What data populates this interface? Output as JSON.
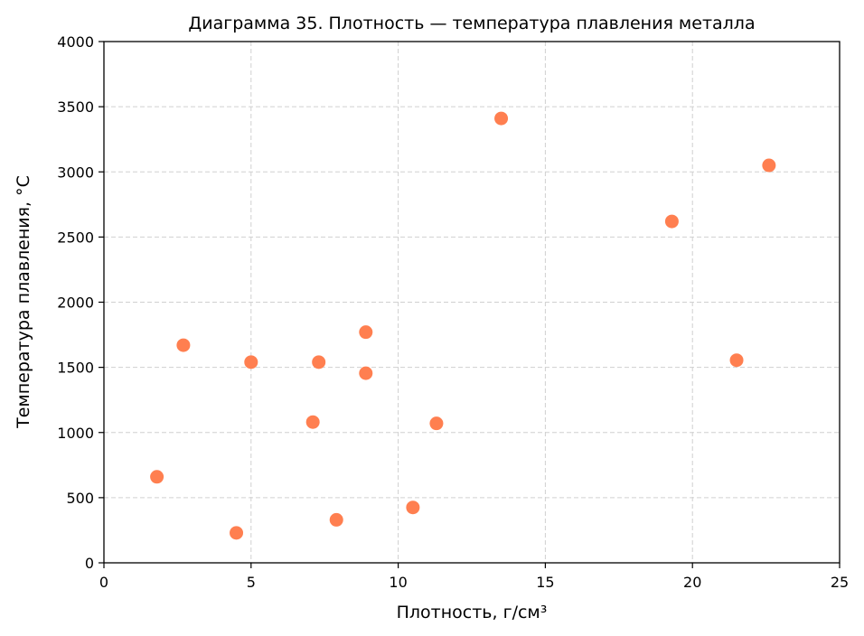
{
  "chart_data": {
    "type": "scatter",
    "title": "Диаграмма 35. Плотность — температура плавления металла",
    "xlabel": "Плотность, г/см³",
    "ylabel": "Температура плавления, °C",
    "xlim": [
      0,
      25
    ],
    "ylim": [
      0,
      4000
    ],
    "xticks": [
      0,
      5,
      10,
      15,
      20,
      25
    ],
    "yticks": [
      0,
      500,
      1000,
      1500,
      2000,
      2500,
      3000,
      3500,
      4000
    ],
    "grid": true,
    "point_color": "#ff7f50",
    "points": [
      {
        "x": 1.8,
        "y": 660
      },
      {
        "x": 2.7,
        "y": 1670
      },
      {
        "x": 4.5,
        "y": 230
      },
      {
        "x": 5.0,
        "y": 1540
      },
      {
        "x": 7.1,
        "y": 1080
      },
      {
        "x": 7.3,
        "y": 1540
      },
      {
        "x": 7.9,
        "y": 330
      },
      {
        "x": 8.9,
        "y": 1770
      },
      {
        "x": 8.9,
        "y": 1455
      },
      {
        "x": 10.5,
        "y": 425
      },
      {
        "x": 11.3,
        "y": 1070
      },
      {
        "x": 13.5,
        "y": 3410
      },
      {
        "x": 19.3,
        "y": 2620
      },
      {
        "x": 21.5,
        "y": 1555
      },
      {
        "x": 22.6,
        "y": 3050
      }
    ]
  }
}
